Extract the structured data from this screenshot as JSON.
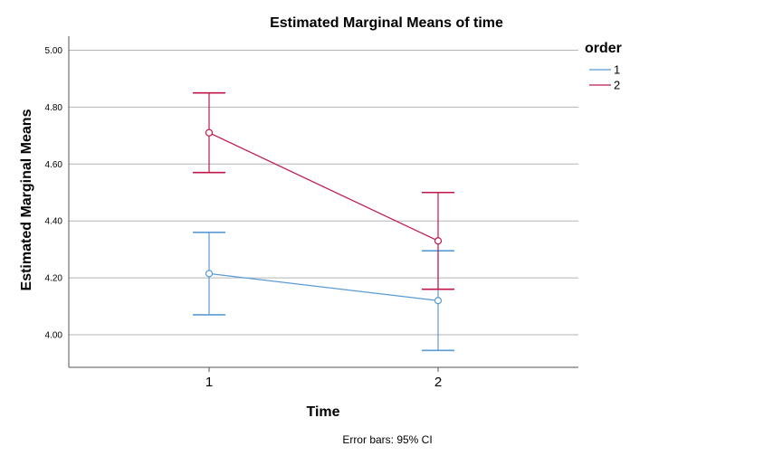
{
  "chart_data": {
    "type": "line",
    "title": "Estimated Marginal Means of time",
    "xlabel": "Time",
    "ylabel": "Estimated Marginal Means",
    "categories": [
      "1",
      "2"
    ],
    "ylim": [
      3.9,
      5.05
    ],
    "yticks": [
      "4.00",
      "4.20",
      "4.40",
      "4.60",
      "4.80",
      "5.00"
    ],
    "ytick_values": [
      4.0,
      4.2,
      4.4,
      4.6,
      4.8,
      5.0
    ],
    "grid": true,
    "legend": {
      "title": "order",
      "position": "right"
    },
    "error_bars": "95% CI",
    "footnote": "Error bars: 95% CI",
    "series": [
      {
        "name": "1",
        "color": "#5b9bd5",
        "values": [
          4.215,
          4.12
        ],
        "lower": [
          4.07,
          3.945
        ],
        "upper": [
          4.36,
          4.295
        ]
      },
      {
        "name": "2",
        "color": "#c0174b",
        "values": [
          4.71,
          4.33
        ],
        "lower": [
          4.57,
          4.16
        ],
        "upper": [
          4.85,
          4.5
        ]
      }
    ]
  }
}
